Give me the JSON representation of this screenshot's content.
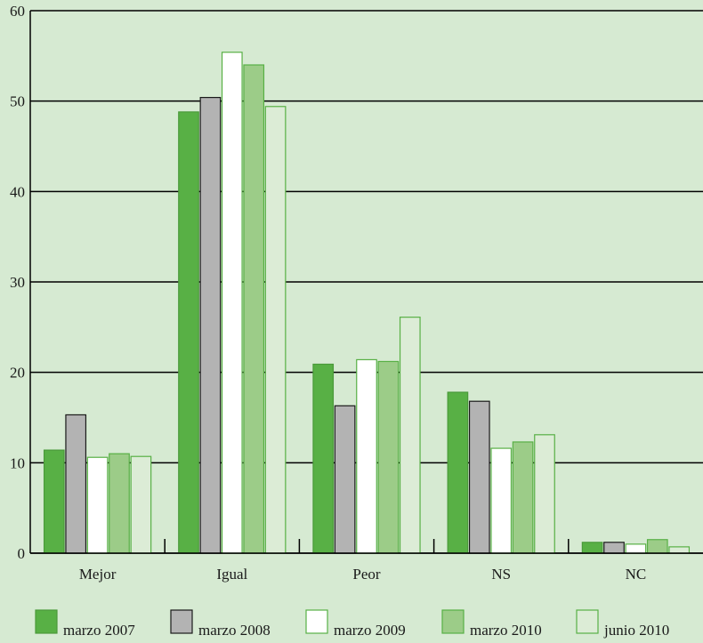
{
  "colors": {
    "background": "#d6ead2",
    "gridline": "#000000",
    "axis": "#000000"
  },
  "chart_data": {
    "type": "bar",
    "title": "",
    "xlabel": "",
    "ylabel": "",
    "ylim": [
      0,
      60
    ],
    "yticks": [
      "0",
      "10",
      "20",
      "30",
      "40",
      "50",
      "60"
    ],
    "grid": true,
    "legend_position": "bottom",
    "categories": [
      "Mejor",
      "Igual",
      "Peor",
      "NS",
      "NC"
    ],
    "series": [
      {
        "name": "marzo 2007",
        "values": [
          11.4,
          48.8,
          20.9,
          17.8,
          1.2
        ],
        "fill": "#58b045",
        "stroke": "#4a9a3a"
      },
      {
        "name": "marzo 2008",
        "values": [
          15.3,
          50.4,
          16.3,
          16.8,
          1.2
        ],
        "fill": "#b3b3b3",
        "stroke": "#1a1a1a"
      },
      {
        "name": "marzo 2009",
        "values": [
          10.6,
          55.4,
          21.4,
          11.6,
          1.0
        ],
        "fill": "#ffffff",
        "stroke": "#58b045"
      },
      {
        "name": "marzo 2010",
        "values": [
          11.0,
          54.0,
          21.2,
          12.3,
          1.5
        ],
        "fill": "#9ccc88",
        "stroke": "#58b045"
      },
      {
        "name": "junio 2010",
        "values": [
          10.7,
          49.4,
          26.1,
          13.1,
          0.7
        ],
        "fill": "#dcecd6",
        "stroke": "#58b045"
      }
    ]
  }
}
